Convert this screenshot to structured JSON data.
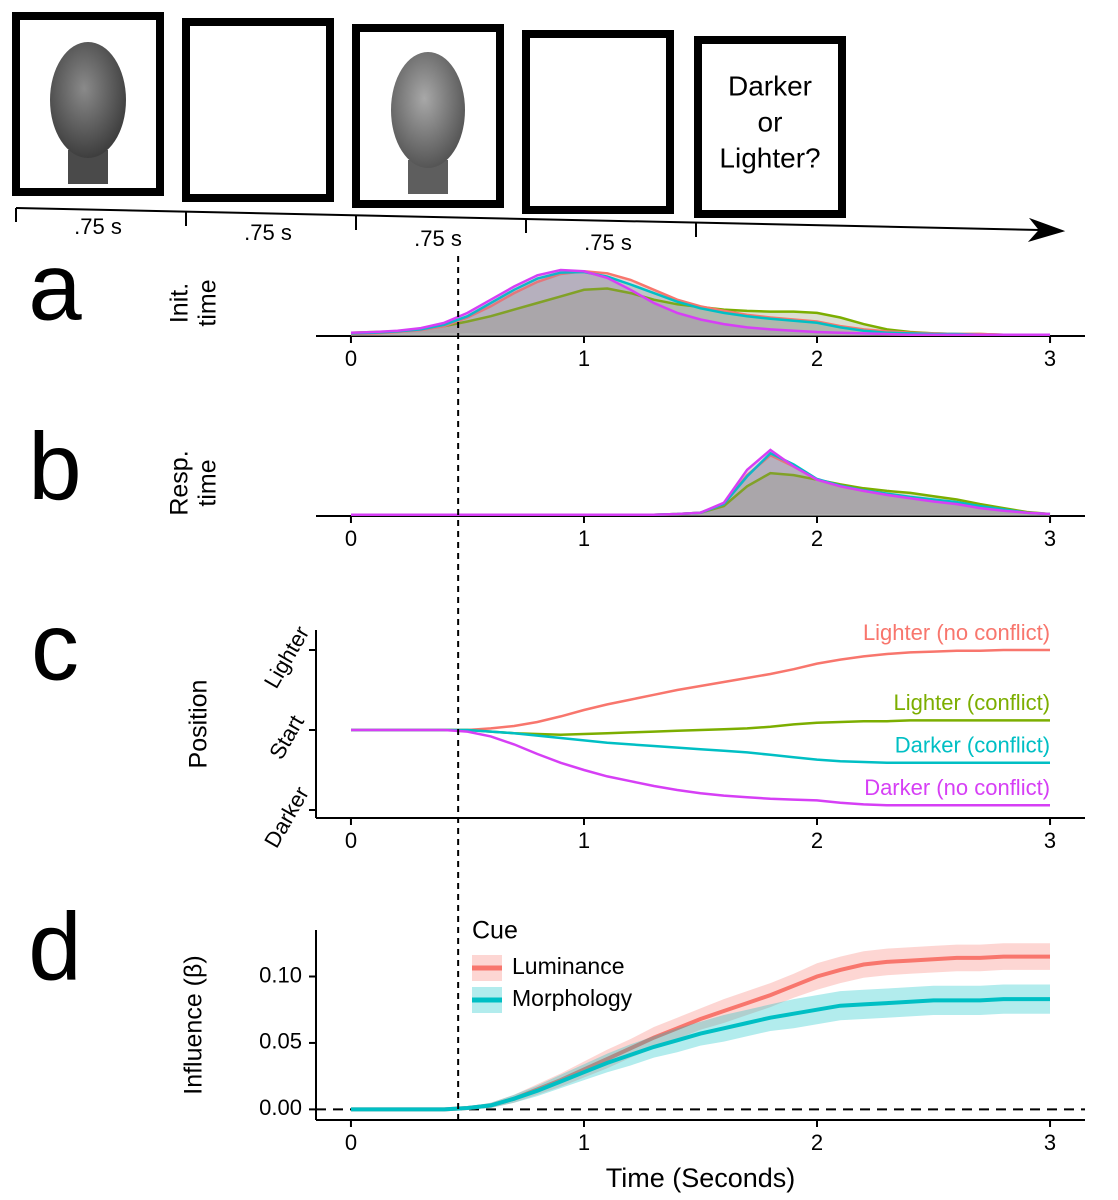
{
  "trial": {
    "durations": [
      ".75 s",
      ".75 s",
      ".75 s",
      ".75 s"
    ],
    "prompt": [
      "Darker",
      "or",
      "Lighter?"
    ]
  },
  "reference_time": 0.46,
  "chart_data": [
    {
      "type": "density",
      "panel": "a",
      "ylabel": [
        "Init.",
        "time"
      ],
      "x": [
        0,
        0.1,
        0.2,
        0.3,
        0.4,
        0.5,
        0.6,
        0.7,
        0.8,
        0.9,
        1,
        1.1,
        1.2,
        1.3,
        1.4,
        1.5,
        1.6,
        1.7,
        1.8,
        1.9,
        2,
        2.1,
        2.2,
        2.3,
        2.4,
        2.5,
        2.6,
        2.7,
        2.8,
        2.9,
        3
      ],
      "xlim": [
        -0.15,
        3.15
      ],
      "xticks": [
        0,
        1,
        2,
        3
      ],
      "ylim": [
        0,
        1
      ],
      "series": [
        {
          "color": "#7cae00",
          "values": [
            0.05,
            0.06,
            0.07,
            0.1,
            0.15,
            0.22,
            0.3,
            0.4,
            0.5,
            0.6,
            0.7,
            0.72,
            0.65,
            0.55,
            0.48,
            0.44,
            0.4,
            0.38,
            0.37,
            0.37,
            0.35,
            0.28,
            0.18,
            0.1,
            0.06,
            0.04,
            0.03,
            0.03,
            0.02,
            0.02,
            0.02
          ]
        },
        {
          "color": "#f8766d",
          "values": [
            0.03,
            0.04,
            0.06,
            0.09,
            0.15,
            0.28,
            0.45,
            0.65,
            0.82,
            0.94,
            0.98,
            0.95,
            0.85,
            0.7,
            0.55,
            0.45,
            0.38,
            0.32,
            0.28,
            0.25,
            0.22,
            0.15,
            0.1,
            0.07,
            0.05,
            0.04,
            0.03,
            0.03,
            0.02,
            0.02,
            0.02
          ]
        },
        {
          "color": "#00bfc4",
          "values": [
            0.04,
            0.05,
            0.07,
            0.1,
            0.17,
            0.3,
            0.5,
            0.7,
            0.87,
            0.96,
            0.97,
            0.9,
            0.78,
            0.65,
            0.52,
            0.42,
            0.35,
            0.3,
            0.26,
            0.23,
            0.2,
            0.13,
            0.08,
            0.05,
            0.04,
            0.03,
            0.03,
            0.02,
            0.02,
            0.02,
            0.02
          ]
        },
        {
          "color": "#d63ff5",
          "values": [
            0.05,
            0.06,
            0.08,
            0.12,
            0.2,
            0.35,
            0.55,
            0.75,
            0.92,
            1.0,
            0.98,
            0.88,
            0.7,
            0.5,
            0.35,
            0.25,
            0.18,
            0.13,
            0.1,
            0.08,
            0.06,
            0.05,
            0.04,
            0.03,
            0.02,
            0.02,
            0.02,
            0.02,
            0.02,
            0.02,
            0.02
          ]
        }
      ]
    },
    {
      "type": "density",
      "panel": "b",
      "ylabel": [
        "Resp.",
        "time"
      ],
      "x": [
        0,
        0.1,
        0.2,
        0.3,
        0.4,
        0.5,
        0.6,
        0.7,
        0.8,
        0.9,
        1,
        1.1,
        1.2,
        1.3,
        1.4,
        1.5,
        1.6,
        1.7,
        1.8,
        1.9,
        2,
        2.1,
        2.2,
        2.3,
        2.4,
        2.5,
        2.6,
        2.7,
        2.8,
        2.9,
        3
      ],
      "xlim": [
        -0.15,
        3.15
      ],
      "xticks": [
        0,
        1,
        2,
        3
      ],
      "ylim": [
        0,
        1
      ],
      "series": [
        {
          "color": "#7cae00",
          "values": [
            0.02,
            0.02,
            0.02,
            0.02,
            0.02,
            0.02,
            0.02,
            0.02,
            0.02,
            0.02,
            0.02,
            0.02,
            0.02,
            0.02,
            0.03,
            0.05,
            0.15,
            0.45,
            0.65,
            0.62,
            0.55,
            0.48,
            0.42,
            0.38,
            0.35,
            0.3,
            0.25,
            0.18,
            0.12,
            0.06,
            0.03
          ]
        },
        {
          "color": "#f8766d",
          "values": [
            0.02,
            0.02,
            0.02,
            0.02,
            0.02,
            0.02,
            0.02,
            0.02,
            0.02,
            0.02,
            0.02,
            0.02,
            0.02,
            0.02,
            0.03,
            0.05,
            0.18,
            0.62,
            0.92,
            0.75,
            0.55,
            0.45,
            0.38,
            0.33,
            0.28,
            0.24,
            0.2,
            0.14,
            0.09,
            0.05,
            0.03
          ]
        },
        {
          "color": "#00bfc4",
          "values": [
            0.02,
            0.02,
            0.02,
            0.02,
            0.02,
            0.02,
            0.02,
            0.02,
            0.02,
            0.02,
            0.02,
            0.02,
            0.02,
            0.02,
            0.03,
            0.05,
            0.18,
            0.6,
            0.95,
            0.78,
            0.56,
            0.46,
            0.39,
            0.34,
            0.29,
            0.25,
            0.21,
            0.15,
            0.1,
            0.05,
            0.03
          ]
        },
        {
          "color": "#d63ff5",
          "values": [
            0.02,
            0.02,
            0.02,
            0.02,
            0.02,
            0.02,
            0.02,
            0.02,
            0.02,
            0.02,
            0.02,
            0.02,
            0.02,
            0.02,
            0.03,
            0.05,
            0.2,
            0.7,
            1.0,
            0.75,
            0.55,
            0.45,
            0.38,
            0.32,
            0.27,
            0.22,
            0.18,
            0.12,
            0.08,
            0.05,
            0.03
          ]
        }
      ]
    },
    {
      "type": "line",
      "panel": "c",
      "ylabel": [
        "Position"
      ],
      "direct_labels": true,
      "x": [
        0,
        0.1,
        0.2,
        0.3,
        0.4,
        0.5,
        0.6,
        0.7,
        0.8,
        0.9,
        1,
        1.1,
        1.2,
        1.3,
        1.4,
        1.5,
        1.6,
        1.7,
        1.8,
        1.9,
        2,
        2.1,
        2.2,
        2.3,
        2.4,
        2.5,
        2.6,
        2.7,
        2.8,
        2.9,
        3
      ],
      "xlim": [
        -0.15,
        3.15
      ],
      "xticks": [
        0,
        1,
        2,
        3
      ],
      "ylim": [
        -1.1,
        1.25
      ],
      "yticks": [
        {
          "value": -1,
          "label": "Darker"
        },
        {
          "value": 0,
          "label": "Start"
        },
        {
          "value": 1,
          "label": "Lighter"
        }
      ],
      "series": [
        {
          "name": "Lighter (no conflict)",
          "color": "#f8766d",
          "values": [
            0,
            0,
            0,
            0,
            0,
            0,
            0.02,
            0.05,
            0.1,
            0.17,
            0.25,
            0.32,
            0.38,
            0.44,
            0.5,
            0.55,
            0.6,
            0.65,
            0.7,
            0.76,
            0.83,
            0.88,
            0.92,
            0.95,
            0.97,
            0.98,
            0.99,
            0.99,
            1.0,
            1.0,
            1.0
          ]
        },
        {
          "name": "Lighter (conflict)",
          "color": "#7cae00",
          "values": [
            0,
            0,
            0,
            0,
            0,
            0,
            -0.02,
            -0.04,
            -0.05,
            -0.06,
            -0.05,
            -0.04,
            -0.03,
            -0.02,
            -0.01,
            0,
            0.01,
            0.02,
            0.04,
            0.07,
            0.09,
            0.1,
            0.11,
            0.11,
            0.12,
            0.12,
            0.12,
            0.12,
            0.12,
            0.12,
            0.12
          ]
        },
        {
          "name": "Darker (conflict)",
          "color": "#00bfc4",
          "values": [
            0,
            0,
            0,
            0,
            0,
            0,
            -0.02,
            -0.04,
            -0.07,
            -0.1,
            -0.13,
            -0.16,
            -0.18,
            -0.2,
            -0.22,
            -0.24,
            -0.26,
            -0.28,
            -0.31,
            -0.34,
            -0.37,
            -0.39,
            -0.4,
            -0.41,
            -0.41,
            -0.41,
            -0.41,
            -0.41,
            -0.41,
            -0.41,
            -0.41
          ]
        },
        {
          "name": "Darker (no conflict)",
          "color": "#d63ff5",
          "values": [
            0,
            0,
            0,
            0,
            0,
            -0.02,
            -0.08,
            -0.18,
            -0.3,
            -0.41,
            -0.5,
            -0.58,
            -0.64,
            -0.7,
            -0.75,
            -0.79,
            -0.82,
            -0.84,
            -0.86,
            -0.87,
            -0.88,
            -0.91,
            -0.93,
            -0.94,
            -0.94,
            -0.94,
            -0.94,
            -0.94,
            -0.94,
            -0.94,
            -0.94
          ]
        }
      ]
    },
    {
      "type": "line",
      "panel": "d",
      "ylabel": [
        "Influence (β)"
      ],
      "xlabel": "Time (Seconds)",
      "legend": "top-left",
      "legend_title": "Cue",
      "hline": 0,
      "x": [
        0,
        0.1,
        0.2,
        0.3,
        0.4,
        0.5,
        0.6,
        0.7,
        0.8,
        0.9,
        1,
        1.1,
        1.2,
        1.3,
        1.4,
        1.5,
        1.6,
        1.7,
        1.8,
        1.9,
        2,
        2.1,
        2.2,
        2.3,
        2.4,
        2.5,
        2.6,
        2.7,
        2.8,
        2.9,
        3
      ],
      "xlim": [
        -0.15,
        3.15
      ],
      "xticks": [
        0,
        1,
        2,
        3
      ],
      "ylim": [
        -0.008,
        0.135
      ],
      "yticks": [
        {
          "value": 0,
          "label": "0.00"
        },
        {
          "value": 0.05,
          "label": "0.05"
        },
        {
          "value": 0.1,
          "label": "0.10"
        }
      ],
      "series": [
        {
          "name": "Luminance",
          "color": "#f8766d",
          "values": [
            0,
            0,
            0,
            0,
            0,
            0.001,
            0.003,
            0.008,
            0.015,
            0.022,
            0.03,
            0.038,
            0.046,
            0.054,
            0.061,
            0.068,
            0.074,
            0.08,
            0.086,
            0.093,
            0.1,
            0.105,
            0.109,
            0.111,
            0.112,
            0.113,
            0.114,
            0.114,
            0.115,
            0.115,
            0.115
          ],
          "ci": [
            0.001,
            0.001,
            0.001,
            0.001,
            0.001,
            0.001,
            0.002,
            0.003,
            0.004,
            0.005,
            0.006,
            0.007,
            0.007,
            0.008,
            0.008,
            0.008,
            0.009,
            0.009,
            0.009,
            0.009,
            0.01,
            0.01,
            0.01,
            0.01,
            0.01,
            0.01,
            0.01,
            0.01,
            0.01,
            0.01,
            0.01
          ]
        },
        {
          "name": "Morphology",
          "color": "#00bfc4",
          "values": [
            0,
            0,
            0,
            0,
            0,
            0.001,
            0.003,
            0.008,
            0.014,
            0.021,
            0.028,
            0.035,
            0.041,
            0.047,
            0.052,
            0.057,
            0.061,
            0.065,
            0.069,
            0.072,
            0.075,
            0.078,
            0.079,
            0.08,
            0.081,
            0.082,
            0.082,
            0.082,
            0.083,
            0.083,
            0.083
          ],
          "ci": [
            0.001,
            0.001,
            0.001,
            0.001,
            0.001,
            0.001,
            0.002,
            0.003,
            0.004,
            0.005,
            0.006,
            0.007,
            0.008,
            0.008,
            0.009,
            0.009,
            0.01,
            0.01,
            0.01,
            0.011,
            0.011,
            0.011,
            0.011,
            0.011,
            0.011,
            0.011,
            0.011,
            0.011,
            0.011,
            0.011,
            0.011
          ]
        }
      ]
    }
  ]
}
